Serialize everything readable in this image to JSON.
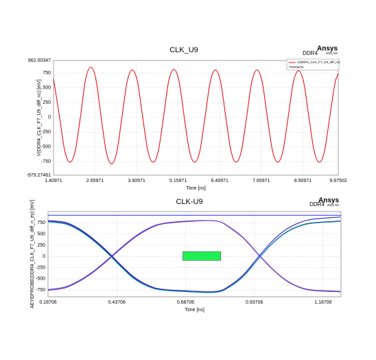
{
  "chart_data": [
    {
      "type": "line",
      "title": "CLK_U9",
      "label": "DDR4",
      "logo": "Ansys",
      "version": "2021 R2",
      "x_label": "Time [ns]",
      "y_label": "V(DDR4_CLK_F7_U9_diff_nc) [mV]",
      "legend_title": "Transient1",
      "legend": "upper right",
      "grid": true,
      "xlim": [
        1.40971,
        9.97502
      ],
      "ylim": [
        -979.27461,
        962.00347
      ],
      "xticks": [
        1.40971,
        2.65971,
        3.90971,
        5.15971,
        6.40971,
        7.65971,
        8.90971,
        9.97502
      ],
      "yticks": [
        -979.27461,
        -750,
        -500,
        -250,
        0,
        250,
        500,
        750,
        962.00347
      ],
      "x": [
        1.40971,
        1.5925,
        1.74875,
        1.905,
        2.06125,
        2.2175,
        2.37375,
        2.53,
        2.68625,
        2.8425,
        2.99875,
        3.155,
        3.31125,
        3.4675,
        3.62375,
        3.78,
        3.93625,
        4.0925,
        4.24875,
        4.405,
        4.56125,
        4.7175,
        4.87375,
        5.03,
        5.18625,
        5.3425,
        5.49875,
        5.655,
        5.81125,
        5.9675,
        6.12375,
        6.28,
        6.43625,
        6.5925,
        6.74875,
        6.905,
        7.06125,
        7.2175,
        7.37375,
        7.53,
        7.68625,
        7.8425,
        7.99875,
        8.155,
        8.31125,
        8.4675,
        8.62375,
        8.78,
        8.93625,
        9.0925,
        9.24875,
        9.405,
        9.56125,
        9.7175,
        9.87375,
        9.97502
      ],
      "series": [
        {
          "name": "V(DDR4_CLK_F7_U9_diff_nc)",
          "color": "#e8101a",
          "values": [
            650,
            0,
            -570,
            -760,
            -570,
            0,
            640,
            850,
            640,
            0,
            -590,
            -790,
            -590,
            0,
            600,
            800,
            600,
            0,
            -570,
            -760,
            -570,
            0,
            610,
            810,
            610,
            0,
            -570,
            -760,
            -570,
            0,
            600,
            800,
            600,
            0,
            -570,
            -760,
            -570,
            0,
            600,
            800,
            600,
            0,
            -570,
            -760,
            -570,
            0,
            590,
            790,
            590,
            0,
            -570,
            -760,
            -570,
            0,
            570,
            740
          ]
        }
      ]
    },
    {
      "type": "line",
      "title": "CLK-U9",
      "label": "DDR4",
      "logo": "Ansys",
      "version": "2021 R2",
      "x_label": "Time [ns]",
      "y_label": "AEYEPROBE(DDR4_CLK_F7_U9_diff_n_ey) [mV]",
      "grid": true,
      "xlim": [
        0.18706,
        1.25206
      ],
      "ylim": [
        -900,
        1000
      ],
      "xticks": [
        0.18706,
        0.43706,
        0.68706,
        0.93706,
        1.18706
      ],
      "yticks": [
        -750,
        -500,
        -250,
        0,
        250,
        500,
        750
      ],
      "limit_line": {
        "value": 920,
        "color": "#2a2ad8"
      },
      "mask": {
        "x": [
          0.677,
          0.815
        ],
        "y": [
          -92,
          110
        ],
        "color": "#22ee55"
      },
      "x": [
        0.18706,
        0.25,
        0.3,
        0.35,
        0.4,
        0.45,
        0.5,
        0.55,
        0.6,
        0.7,
        0.8,
        0.85,
        0.9,
        0.95,
        1.0,
        1.05,
        1.1,
        1.15,
        1.25
      ],
      "series": [
        {
          "color": "#1a1a8c",
          "values": [
            790,
            740,
            600,
            380,
            110,
            -200,
            -480,
            -650,
            -740,
            -780,
            -790,
            -660,
            -420,
            -60,
            280,
            530,
            680,
            750,
            790
          ]
        },
        {
          "color": "#3b3bd6",
          "values": [
            -740,
            -680,
            -540,
            -340,
            -90,
            180,
            430,
            620,
            730,
            790,
            790,
            640,
            400,
            60,
            -260,
            -520,
            -680,
            -750,
            -780
          ]
        },
        {
          "color": "#8a3fb5",
          "values": [
            -760,
            -700,
            -560,
            -360,
            -110,
            160,
            410,
            600,
            720,
            780,
            790,
            630,
            390,
            50,
            -270,
            -530,
            -690,
            -760,
            -790
          ]
        },
        {
          "color": "#20a0a8",
          "values": [
            770,
            720,
            580,
            360,
            90,
            -220,
            -500,
            -670,
            -750,
            -790,
            -800,
            -670,
            -430,
            -70,
            270,
            520,
            670,
            740,
            780
          ]
        },
        {
          "color": "#2a2ad8",
          "values": [
            800,
            760,
            620,
            400,
            130,
            -180,
            -460,
            -640,
            -730,
            -770,
            -780,
            -640,
            -390,
            -20,
            330,
            590,
            750,
            830,
            880
          ]
        }
      ]
    }
  ]
}
